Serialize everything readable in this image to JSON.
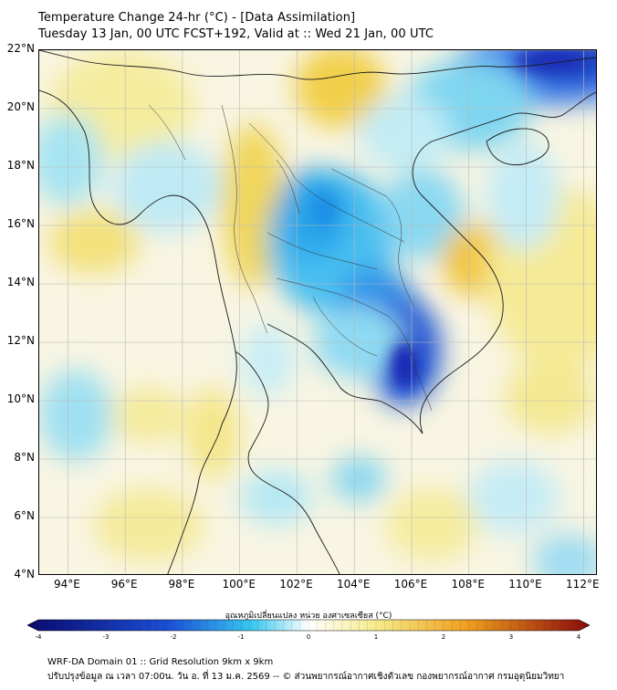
{
  "header": {
    "title_line1": "Temperature Change 24-hr (°C) - [Data Assimilation]",
    "title_line2": "Tuesday 13 Jan, 00 UTC FCST+192, Valid at :: Wed 21 Jan, 00 UTC"
  },
  "map": {
    "lat_labels": [
      "22°N",
      "20°N",
      "18°N",
      "16°N",
      "14°N",
      "12°N",
      "10°N",
      "8°N",
      "6°N",
      "4°N"
    ],
    "lon_labels": [
      "94°E",
      "96°E",
      "98°E",
      "100°E",
      "102°E",
      "104°E",
      "106°E",
      "108°E",
      "110°E",
      "112°E"
    ],
    "lat_range": [
      4,
      22
    ],
    "lon_range": [
      93,
      112.5
    ]
  },
  "colorbar": {
    "label": "อุณหภูมิเปลี่ยนแปลง หน่วย องศาเซลเซียส (°C)",
    "ticks": [
      "-4",
      "-3",
      "-2",
      "-1",
      "0",
      "1",
      "2",
      "3",
      "4"
    ],
    "range": [
      -4,
      4
    ],
    "colors": {
      "min": "#0a0a6e",
      "cold": "#1b4fd6",
      "cool": "#38c8f0",
      "neutral": "#ffffff",
      "warm": "#f6eb8a",
      "hot": "#f0a020",
      "max": "#8a0a0a"
    }
  },
  "footer": {
    "line1": "WRF-DA Domain 01 :: Grid Resolution 9km x 9km",
    "line2": "ปรับปรุงข้อมูล ณ เวลา 07:00น. วัน อ. ที่ 13 ม.ค. 2569 -- © ส่วนพยากรณ์อากาศเชิงตัวเลข กองพยากรณ์อากาศ กรมอุตุนิยมวิทยา"
  }
}
